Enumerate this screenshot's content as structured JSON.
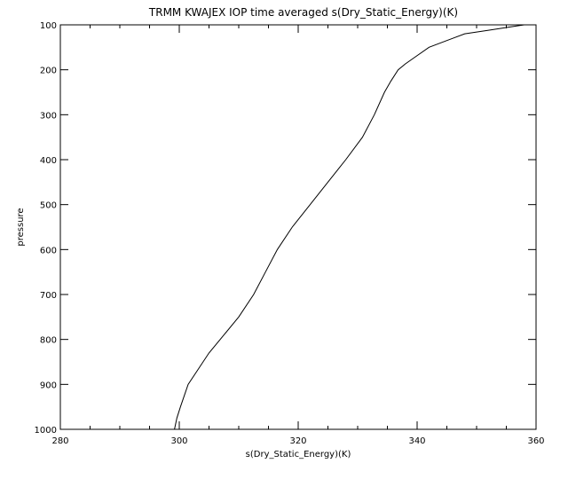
{
  "chart_data": {
    "type": "line",
    "title": "TRMM KWAJEX IOP time averaged s(Dry_Static_Energy)(K)",
    "xlabel": "s(Dry_Static_Energy)(K)",
    "ylabel": "pressure",
    "xlim": [
      280,
      360
    ],
    "ylim": [
      1000,
      100
    ],
    "y_inverted": true,
    "grid": false,
    "x_ticks": [
      280,
      300,
      320,
      340,
      360
    ],
    "y_ticks": [
      100,
      200,
      300,
      400,
      500,
      600,
      700,
      800,
      900,
      1000
    ],
    "series": [
      {
        "x": [
          299.2,
          299.6,
          300.2,
          301.5,
          303.0,
          305.0,
          307.5,
          310.0,
          312.5,
          314.5,
          316.5,
          319.0,
          322.0,
          325.0,
          328.0,
          330.8,
          332.8,
          334.5,
          335.6,
          336.8,
          338.0,
          339.3,
          342.0,
          345.0,
          348.0,
          352.0,
          356.0,
          358.0
        ],
        "y": [
          1000,
          975,
          950,
          900,
          870,
          830,
          790,
          750,
          700,
          650,
          600,
          550,
          500,
          450,
          400,
          350,
          300,
          250,
          225,
          200,
          187,
          175,
          150,
          135,
          120,
          112,
          104,
          100
        ]
      }
    ]
  }
}
